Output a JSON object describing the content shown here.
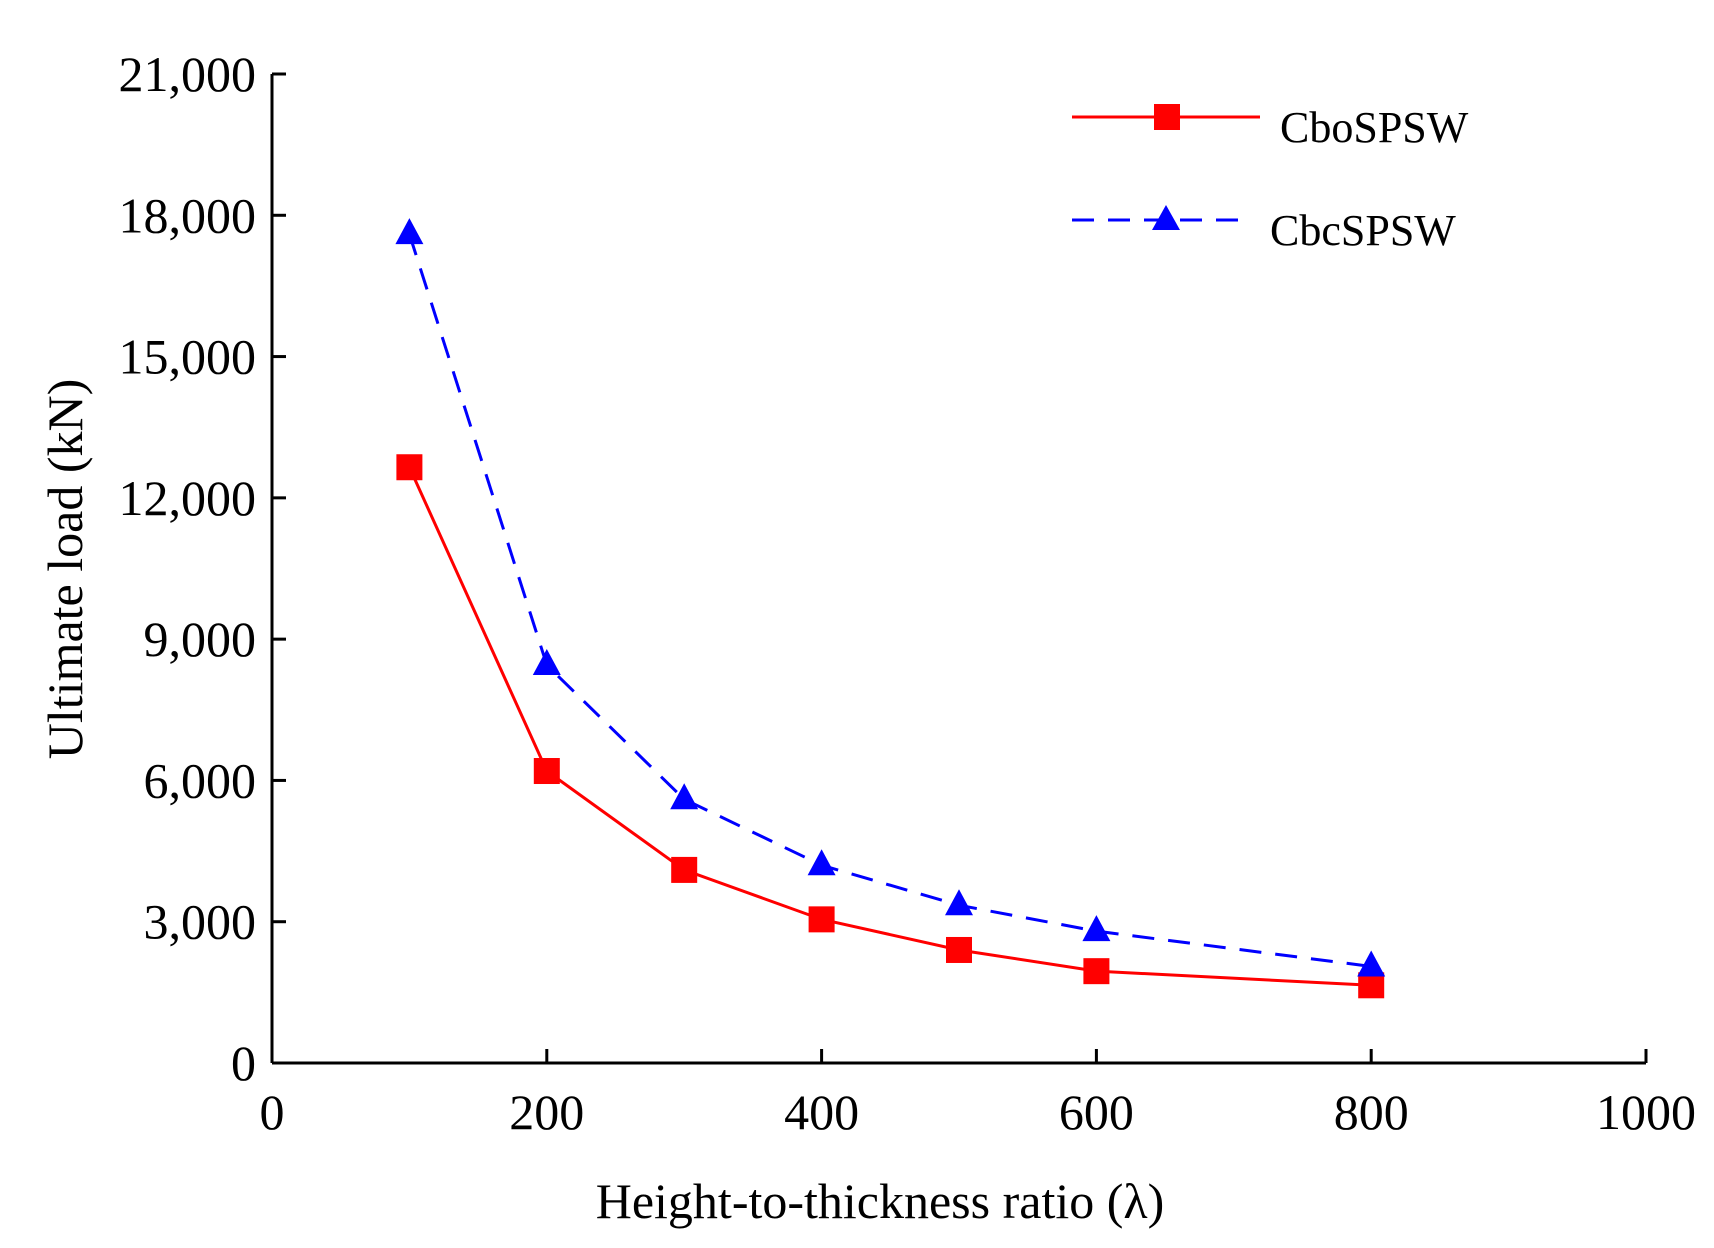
{
  "chart_data": {
    "type": "line",
    "xlabel": "Height-to-thickness ratio (λ)",
    "ylabel": "Ultimate load (kN)",
    "xlim": [
      0,
      1000
    ],
    "ylim": [
      0,
      21000
    ],
    "x_ticks": [
      0,
      200,
      400,
      600,
      800,
      1000
    ],
    "x_tick_labels": [
      "0",
      "200",
      "400",
      "600",
      "800",
      "1000"
    ],
    "y_ticks": [
      0,
      3000,
      6000,
      9000,
      12000,
      15000,
      18000,
      21000
    ],
    "y_tick_labels": [
      "0",
      "3,000",
      "6,000",
      "9,000",
      "12,000",
      "15,000",
      "18,000",
      "21,000"
    ],
    "grid": false,
    "legend_position": "top-right",
    "series": [
      {
        "name": "CboSPSW",
        "color": "#ff0000",
        "marker": "square",
        "line_style": "solid",
        "x": [
          100,
          200,
          300,
          400,
          500,
          600,
          800
        ],
        "y": [
          12650,
          6200,
          4100,
          3050,
          2400,
          1950,
          1650
        ]
      },
      {
        "name": "CbcSPSW",
        "color": "#0000ff",
        "marker": "triangle",
        "line_style": "dashed",
        "x": [
          100,
          200,
          300,
          400,
          500,
          600,
          800
        ],
        "y": [
          17600,
          8450,
          5600,
          4200,
          3350,
          2800,
          2050
        ]
      }
    ]
  }
}
